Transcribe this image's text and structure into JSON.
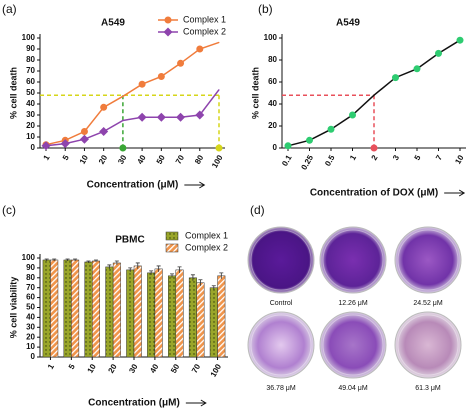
{
  "chart_data": [
    {
      "type": "line",
      "panel_label": "(a)",
      "title": "A549",
      "x_label": "Concentration (μM)",
      "y_label": "% cell death",
      "categories": [
        "1",
        "5",
        "10",
        "20",
        "30",
        "40",
        "50",
        "70",
        "80",
        "100"
      ],
      "series": [
        {
          "name": "Complex 1",
          "color": "#f07c3c",
          "marker": "circle",
          "values": [
            3,
            7,
            15,
            37,
            47,
            58,
            65,
            77,
            90,
            96
          ]
        },
        {
          "name": "Complex 2",
          "color": "#8e44ad",
          "marker": "diamond",
          "values": [
            2,
            4,
            8,
            15,
            25,
            28,
            28,
            28,
            30,
            53
          ]
        }
      ],
      "guides": [
        {
          "y": 48,
          "x": "30",
          "color": "#3aa635"
        },
        {
          "y": 48,
          "x": "100",
          "color": "#d6d61a"
        }
      ],
      "ylim": [
        0,
        100
      ],
      "yticks": [
        0,
        10,
        20,
        30,
        40,
        50,
        60,
        70,
        80,
        90,
        100
      ],
      "legend": "top-right"
    },
    {
      "type": "line",
      "panel_label": "(b)",
      "title": "A549",
      "x_label": "Concentration of DOX (μM)",
      "y_label": "% cell death",
      "categories": [
        "0.1",
        "0.25",
        "0.5",
        "1",
        "2",
        "3",
        "5",
        "7",
        "10"
      ],
      "series": [
        {
          "color": "#111111",
          "marker_color": "#2ecc71",
          "marker": "circle",
          "values": [
            2,
            7,
            17,
            30,
            48,
            64,
            72,
            86,
            98
          ]
        }
      ],
      "guides": [
        {
          "y": 48,
          "x": "2",
          "color": "#e8505b"
        }
      ],
      "ylim": [
        0,
        100
      ],
      "yticks": [
        0,
        20,
        40,
        60,
        80,
        100
      ]
    },
    {
      "type": "bar",
      "panel_label": "(c)",
      "title": "PBMC",
      "x_label": "Concentration (μM)",
      "y_label": "% cell viability",
      "categories": [
        "1",
        "5",
        "10",
        "20",
        "30",
        "40",
        "50",
        "70",
        "100"
      ],
      "series": [
        {
          "name": "Complex 1",
          "color": "#9aa62a",
          "pattern": "dots",
          "values": [
            98,
            98,
            96,
            91,
            88,
            85,
            82,
            80,
            70
          ],
          "errors": [
            1,
            1,
            1,
            2,
            2,
            2,
            2,
            3,
            2
          ]
        },
        {
          "name": "Complex 2",
          "color": "#f0944a",
          "pattern": "stripes",
          "values": [
            98,
            98,
            97,
            95,
            92,
            89,
            88,
            75,
            82
          ],
          "errors": [
            1,
            1,
            1,
            2,
            3,
            3,
            3,
            3,
            3
          ]
        }
      ],
      "ylim": [
        0,
        100
      ],
      "yticks": [
        0,
        10,
        20,
        30,
        40,
        50,
        60,
        70,
        80,
        90,
        100
      ],
      "legend": "top-right"
    }
  ],
  "image_panel": {
    "panel_label": "(d)",
    "captions": [
      "Control",
      "12.26 μM",
      "24.52 μM",
      "36.78 μM",
      "49.04 μM",
      "61.3 μM"
    ]
  }
}
